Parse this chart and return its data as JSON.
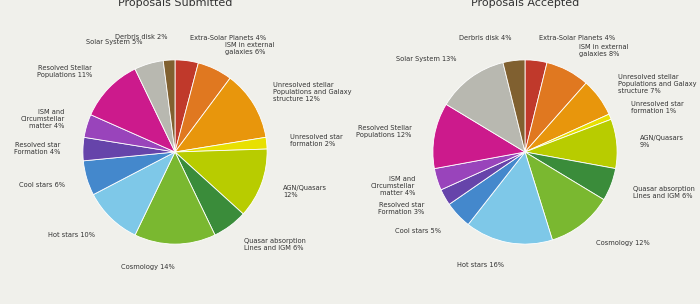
{
  "submitted_title": "Proposals Submitted",
  "accepted_title": "Proposals Accepted",
  "submitted": {
    "labels": [
      "Extra-Solar Planets 4%",
      "ISM in external\ngalaxies 6%",
      "Unresolved stellar\nPopulations and Galaxy\nstructure 12%",
      "Unresolved star\nformation 2%",
      "AGN/Quasars\n12%",
      "Quasar absorption\nLines and IGM 6%",
      "Cosmology 14%",
      "Hot stars 10%",
      "Cool stars 6%",
      "Resolved star\nFormation 4%",
      "ISM and\nCircumstellar\nmatter 4%",
      "Resolved Stellar\nPopulations 11%",
      "Solar System 5%",
      "Derbris disk 2%"
    ],
    "values": [
      4,
      6,
      12,
      2,
      12,
      6,
      14,
      10,
      6,
      4,
      4,
      11,
      5,
      2
    ],
    "colors": [
      "#c0392b",
      "#e07820",
      "#e8960c",
      "#e8e000",
      "#b8cc00",
      "#3a8c3a",
      "#7ab830",
      "#7ec8e8",
      "#4488cc",
      "#6644aa",
      "#9944bb",
      "#cc1a8c",
      "#b8b8b0",
      "#806030"
    ]
  },
  "accepted": {
    "labels": [
      "Extra-Solar Planets 4%",
      "ISM in external\ngalaxies 8%",
      "Unresolved stellar\nPopulations and Galaxy\nstructure 7%",
      "Unresolved star\nformation 1%",
      "AGN/Quasars\n9%",
      "Quasar absorption\nLines and IGM 6%",
      "Cosmology 12%",
      "Hot stars 16%",
      "Cool stars 5%",
      "Resolved star\nFormation 3%",
      "ISM and\nCircumstellar\nmatter 4%",
      "Resolved Stellar\nPopulations 12%",
      "Solar System 13%",
      "Derbris disk 4%"
    ],
    "values": [
      4,
      8,
      7,
      1,
      9,
      6,
      12,
      16,
      5,
      3,
      4,
      12,
      13,
      4
    ],
    "colors": [
      "#c0392b",
      "#e07820",
      "#e8960c",
      "#e8e000",
      "#b8cc00",
      "#3a8c3a",
      "#7ab830",
      "#7ec8e8",
      "#4488cc",
      "#6644aa",
      "#9944bb",
      "#cc1a8c",
      "#b8b8b0",
      "#806030"
    ]
  },
  "label_fontsize": 4.8,
  "title_fontsize": 8,
  "background_color": "#f0f0eb"
}
